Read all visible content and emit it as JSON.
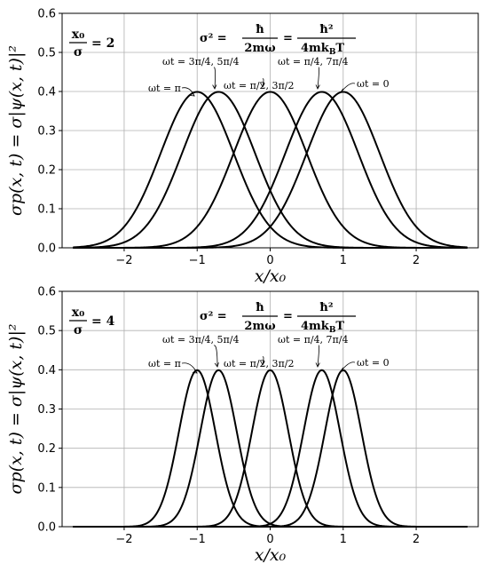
{
  "chart_data": [
    {
      "type": "line",
      "ratio_label": {
        "numerator": "x₀",
        "denominator": "σ",
        "value": "= 2"
      },
      "formula": {
        "lhs": "σ² =",
        "f1_num": "ħ",
        "f1_den": "2mω",
        "eq": "=",
        "f2_num": "ħ²",
        "f2_den": "4mk",
        "f2_den_sub": "B",
        "f2_den_tail": "T"
      },
      "xlabel": "x/x₀",
      "ylabel": "σp(x, t) = σ|ψ(x, t)|²",
      "xlim": [
        -2.85,
        2.85
      ],
      "ylim": [
        0,
        0.6
      ],
      "xticks": [
        -2,
        -1,
        0,
        1,
        2
      ],
      "xtick_labels": [
        "−2",
        "−1",
        "0",
        "1",
        "2"
      ],
      "yticks": [
        0.0,
        0.1,
        0.2,
        0.3,
        0.4,
        0.5,
        0.6
      ],
      "ytick_labels": [
        "0.0",
        "0.1",
        "0.2",
        "0.3",
        "0.4",
        "0.5",
        "0.6"
      ],
      "grid": true,
      "x_ratio": 2,
      "series": [
        {
          "center": -1.0,
          "peak": 0.399
        },
        {
          "center": -0.7071,
          "peak": 0.399
        },
        {
          "center": 0.0,
          "peak": 0.399
        },
        {
          "center": 0.7071,
          "peak": 0.399
        },
        {
          "center": 1.0,
          "peak": 0.399
        }
      ],
      "annotations": [
        {
          "text": "ωt = π",
          "target_center": -1.0
        },
        {
          "text": "ωt = 3π/4, 5π/4",
          "target_center": -0.7071
        },
        {
          "text": "ωt = π/2, 3π/2",
          "target_center": 0.0
        },
        {
          "text": "ωt = π/4, 7π/4",
          "target_center": 0.7071
        },
        {
          "text": "ωt = 0",
          "target_center": 1.0
        }
      ]
    },
    {
      "type": "line",
      "ratio_label": {
        "numerator": "x₀",
        "denominator": "σ",
        "value": "= 4"
      },
      "formula": {
        "lhs": "σ² =",
        "f1_num": "ħ",
        "f1_den": "2mω",
        "eq": "=",
        "f2_num": "ħ²",
        "f2_den": "4mk",
        "f2_den_sub": "B",
        "f2_den_tail": "T"
      },
      "xlabel": "x/x₀",
      "ylabel": "σp(x, t) = σ|ψ(x, t)|²",
      "xlim": [
        -2.85,
        2.85
      ],
      "ylim": [
        0,
        0.6
      ],
      "xticks": [
        -2,
        -1,
        0,
        1,
        2
      ],
      "xtick_labels": [
        "−2",
        "−1",
        "0",
        "1",
        "2"
      ],
      "yticks": [
        0.0,
        0.1,
        0.2,
        0.3,
        0.4,
        0.5,
        0.6
      ],
      "ytick_labels": [
        "0.0",
        "0.1",
        "0.2",
        "0.3",
        "0.4",
        "0.5",
        "0.6"
      ],
      "grid": true,
      "x_ratio": 4,
      "series": [
        {
          "center": -1.0,
          "peak": 0.399
        },
        {
          "center": -0.7071,
          "peak": 0.399
        },
        {
          "center": 0.0,
          "peak": 0.399
        },
        {
          "center": 0.7071,
          "peak": 0.399
        },
        {
          "center": 1.0,
          "peak": 0.399
        }
      ],
      "annotations": [
        {
          "text": "ωt = π",
          "target_center": -1.0
        },
        {
          "text": "ωt = 3π/4, 5π/4",
          "target_center": -0.7071
        },
        {
          "text": "ωt = π/2, 3π/2",
          "target_center": 0.0
        },
        {
          "text": "ωt = π/4, 7π/4",
          "target_center": 0.7071
        },
        {
          "text": "ωt = 0",
          "target_center": 1.0
        }
      ]
    }
  ]
}
